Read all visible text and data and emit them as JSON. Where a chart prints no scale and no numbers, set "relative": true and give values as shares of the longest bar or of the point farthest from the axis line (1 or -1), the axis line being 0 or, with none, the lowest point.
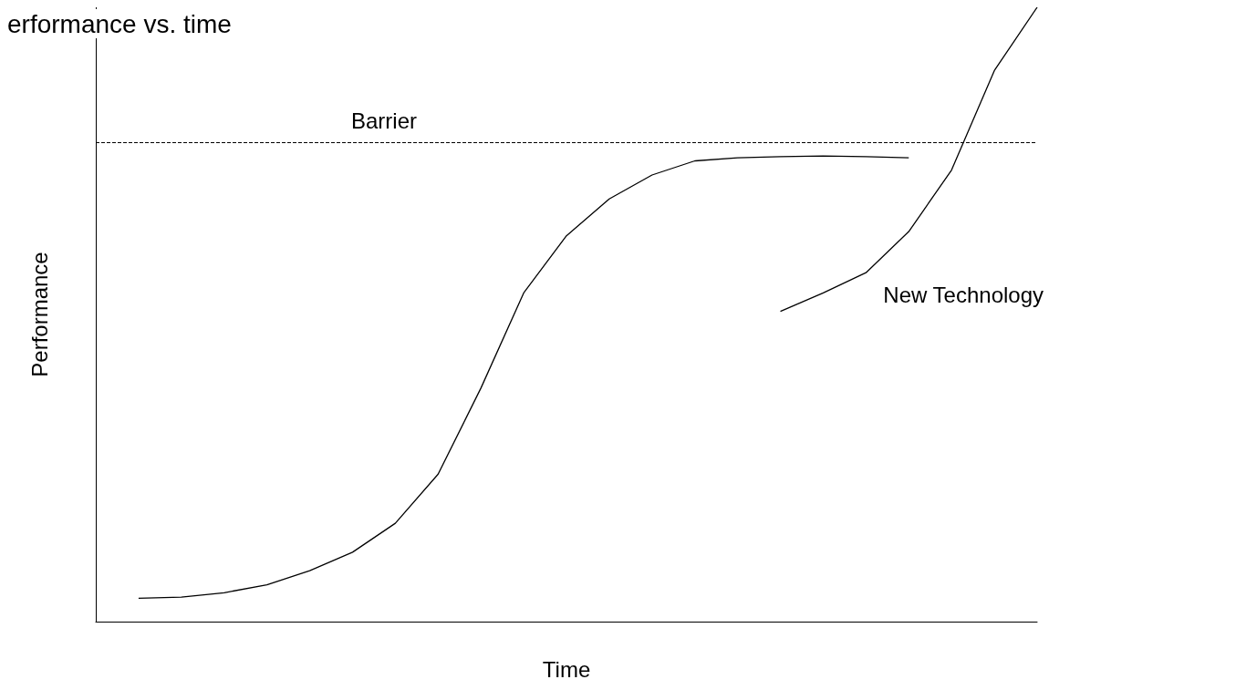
{
  "chart_data": {
    "type": "line",
    "relative": true,
    "title": "erformance vs. time",
    "xlabel": "Time",
    "ylabel": "Performance",
    "categories": [
      null,
      null,
      null,
      null,
      null,
      null,
      null,
      null,
      null,
      null,
      null,
      null,
      null,
      null,
      null,
      null,
      null,
      null,
      null,
      null,
      null,
      null,
      null
    ],
    "grid": false,
    "legend": false,
    "marker": "none",
    "line_style": "solid",
    "ref_lines": [
      {
        "axis": "y",
        "value": 0.78,
        "label": "Barrier",
        "color": "#000000",
        "line_style": "dashed"
      }
    ],
    "series": [
      {
        "color": "#000000",
        "values": [
          null,
          0.038,
          0.04,
          0.047,
          0.06,
          0.083,
          0.113,
          0.16,
          0.24,
          0.38,
          0.535,
          0.628,
          0.688,
          0.727,
          0.75,
          0.755,
          0.757,
          0.758,
          0.757,
          0.755,
          null,
          null,
          null
        ]
      },
      {
        "name": "New Technology",
        "color": "#000000",
        "values": [
          null,
          null,
          null,
          null,
          null,
          null,
          null,
          null,
          null,
          null,
          null,
          null,
          null,
          null,
          null,
          null,
          0.505,
          0.535,
          0.568,
          0.635,
          0.735,
          0.897,
          1.0
        ]
      }
    ]
  }
}
